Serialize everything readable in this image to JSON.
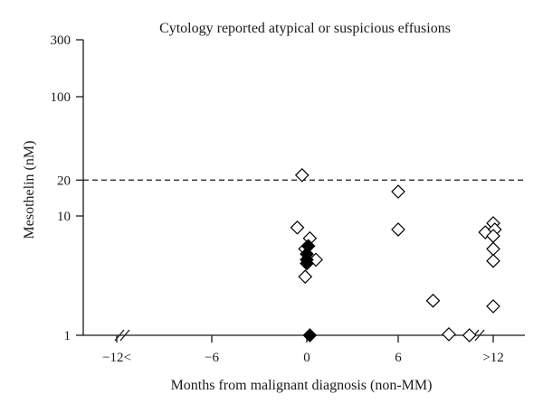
{
  "chart_data": {
    "type": "scatter",
    "title": "Cytology reported atypical or suspicious effusions",
    "xlabel": "Months from malignant diagnosis (non-MM)",
    "ylabel": "Mesothelin (nM)",
    "y_scale": "log",
    "ylim": [
      1,
      300
    ],
    "xlim": [
      -14,
      14
    ],
    "x_ticks": [
      {
        "value": -12,
        "label": "−12<"
      },
      {
        "value": -6,
        "label": "−6"
      },
      {
        "value": 0,
        "label": "0"
      },
      {
        "value": 6,
        "label": "6"
      },
      {
        "value": 12,
        "label": ">12"
      }
    ],
    "y_ticks": [
      {
        "value": 1,
        "label": "1"
      },
      {
        "value": 10,
        "label": "10"
      },
      {
        "value": 20,
        "label": "20"
      },
      {
        "value": 100,
        "label": "100"
      },
      {
        "value": 300,
        "label": "300"
      }
    ],
    "threshold": 20,
    "grid": false,
    "series": [
      {
        "marker": "open-diamond",
        "points": [
          {
            "x": -0.6,
            "y": 8.0
          },
          {
            "x": -0.3,
            "y": 22.0
          },
          {
            "x": -0.1,
            "y": 5.3
          },
          {
            "x": 0.2,
            "y": 6.5
          },
          {
            "x": 0.6,
            "y": 4.3
          },
          {
            "x": -0.1,
            "y": 3.1
          },
          {
            "x": 6.0,
            "y": 16.0
          },
          {
            "x": 6.0,
            "y": 7.7
          },
          {
            "x": 8.2,
            "y": 1.95
          },
          {
            "x": 9.2,
            "y": 1.02
          },
          {
            "x": 10.5,
            "y": 1.0
          },
          {
            "x": 11.5,
            "y": 7.3
          },
          {
            "x": 12.0,
            "y": 8.7
          },
          {
            "x": 12.1,
            "y": 7.7
          },
          {
            "x": 12.0,
            "y": 6.8
          },
          {
            "x": 12.0,
            "y": 5.3
          },
          {
            "x": 12.0,
            "y": 4.2
          },
          {
            "x": 12.0,
            "y": 1.75
          }
        ]
      },
      {
        "marker": "filled-diamond",
        "points": [
          {
            "x": 0.1,
            "y": 5.6
          },
          {
            "x": 0.0,
            "y": 4.8
          },
          {
            "x": 0.0,
            "y": 4.3
          },
          {
            "x": 0.0,
            "y": 4.0
          },
          {
            "x": 0.2,
            "y": 1.0
          }
        ]
      }
    ]
  }
}
